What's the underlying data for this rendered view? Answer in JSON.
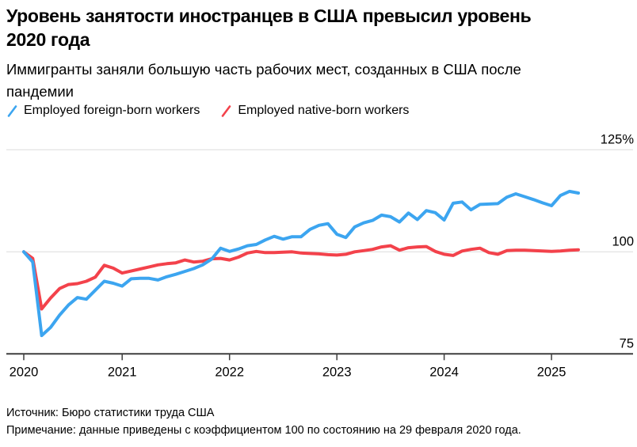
{
  "header": {
    "title_lines": [
      "Уровень занятости иностранцев в США превысил уровень",
      "2020 года"
    ],
    "subtitle_lines": [
      "Иммигранты заняли большую часть рабочих мест, созданных в США после",
      "пандемии"
    ]
  },
  "legend": [
    {
      "label": "Employed foreign-born workers",
      "color": "#3CA5F0"
    },
    {
      "label": "Employed native-born workers",
      "color": "#F3424B"
    }
  ],
  "footer": {
    "source": "Источник: Бюро статистики труда США",
    "note": "Примечание: данные приведены с коэффициентом 100 по состоянию на 29 февраля 2020 года."
  },
  "chart_data": {
    "type": "line",
    "title": "Уровень занятости иностранцев в США превысил уровень 2020 года",
    "subtitle": "Иммигранты заняли большую часть рабочих мест, созданных в США после пандемии",
    "x_unit": "month",
    "grid": "horizontal",
    "legend_position": "top",
    "ylim": [
      75,
      125
    ],
    "yticks": [
      {
        "value": 75,
        "label": "75"
      },
      {
        "value": 100,
        "label": "100"
      },
      {
        "value": 125,
        "label": "125%"
      }
    ],
    "xticks": [
      {
        "label": "2020",
        "month_index": 0
      },
      {
        "label": "2021",
        "month_index": 11
      },
      {
        "label": "2022",
        "month_index": 23
      },
      {
        "label": "2023",
        "month_index": 35
      },
      {
        "label": "2024",
        "month_index": 47
      },
      {
        "label": "2025",
        "month_index": 59
      }
    ],
    "months": [
      "2020-02",
      "2020-03",
      "2020-04",
      "2020-05",
      "2020-06",
      "2020-07",
      "2020-08",
      "2020-09",
      "2020-10",
      "2020-11",
      "2020-12",
      "2021-01",
      "2021-02",
      "2021-03",
      "2021-04",
      "2021-05",
      "2021-06",
      "2021-07",
      "2021-08",
      "2021-09",
      "2021-10",
      "2021-11",
      "2021-12",
      "2022-01",
      "2022-02",
      "2022-03",
      "2022-04",
      "2022-05",
      "2022-06",
      "2022-07",
      "2022-08",
      "2022-09",
      "2022-10",
      "2022-11",
      "2022-12",
      "2023-01",
      "2023-02",
      "2023-03",
      "2023-04",
      "2023-05",
      "2023-06",
      "2023-07",
      "2023-08",
      "2023-09",
      "2023-10",
      "2023-11",
      "2023-12",
      "2024-01",
      "2024-02",
      "2024-03",
      "2024-04",
      "2024-05",
      "2024-06",
      "2024-07",
      "2024-08",
      "2024-09",
      "2024-10",
      "2024-11",
      "2024-12",
      "2025-01",
      "2025-02",
      "2025-03",
      "2025-04"
    ],
    "series": [
      {
        "id": "foreign-born",
        "name": "Employed foreign-born workers",
        "color": "#3CA5F0",
        "values": [
          100,
          97.5,
          79.5,
          81.5,
          84.5,
          87,
          88.8,
          88.4,
          90.6,
          92.8,
          92.3,
          91.6,
          93.4,
          93.5,
          93.5,
          93.1,
          93.9,
          94.5,
          95.2,
          95.9,
          96.8,
          98.2,
          100.9,
          100.1,
          100.7,
          101.5,
          101.8,
          102.9,
          103.8,
          103.1,
          103.7,
          103.7,
          105.5,
          106.5,
          106.9,
          104.3,
          103.5,
          106.1,
          107.1,
          107.7,
          109,
          108.6,
          107.3,
          109.5,
          107.9,
          110.1,
          109.6,
          107.8,
          111.9,
          112.2,
          110.3,
          111.6,
          111.7,
          111.8,
          113.4,
          114.2,
          113.5,
          112.8,
          112,
          111.3,
          113.8,
          114.8,
          114.4
        ]
      },
      {
        "id": "native-born",
        "name": "Employed native-born workers",
        "color": "#F3424B",
        "values": [
          100,
          98.4,
          86,
          88.7,
          91,
          92,
          92.2,
          92.8,
          93.8,
          96.7,
          96,
          94.8,
          95.3,
          95.8,
          96.3,
          96.8,
          97.1,
          97.3,
          98,
          97.5,
          97.7,
          98.3,
          98.4,
          98,
          98.7,
          99.7,
          100.1,
          99.8,
          99.8,
          99.9,
          100,
          99.7,
          99.6,
          99.5,
          99.3,
          99.2,
          99.4,
          100,
          100.3,
          100.6,
          101.2,
          101.5,
          100.4,
          101,
          101.2,
          101.3,
          100.1,
          99.4,
          99.1,
          100.2,
          100.6,
          100.9,
          99.8,
          99.4,
          100.3,
          100.4,
          100.4,
          100.3,
          100.2,
          100.1,
          100.2,
          100.4,
          100.5
        ]
      }
    ]
  }
}
